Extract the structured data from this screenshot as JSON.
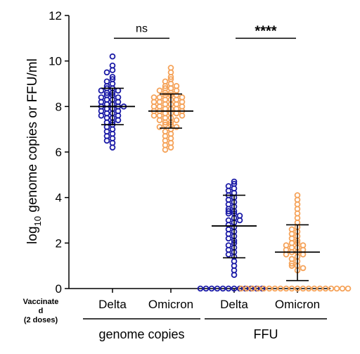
{
  "chart_data": {
    "type": "scatter",
    "ylabel_main": "log",
    "ylabel_sub": "10",
    "ylabel_rest": " genome copies or FFU/ml",
    "ylim": [
      0,
      12
    ],
    "yticks": [
      "0",
      "2",
      "4",
      "6",
      "8",
      "10",
      "12"
    ],
    "row_label_lines": [
      "Vaccinate",
      "d",
      "(2 doses)"
    ],
    "categories": [
      "Delta",
      "Omicron",
      "Delta",
      "Omicron"
    ],
    "groups": [
      {
        "label": "genome copies",
        "categories": [
          0,
          1
        ]
      },
      {
        "label": "FFU",
        "categories": [
          2,
          3
        ]
      }
    ],
    "colors": {
      "Delta": "#1a1aa6",
      "Omicron": "#f5a35a"
    },
    "series": [
      {
        "category": "Delta",
        "group": "genome copies",
        "mean": 8.0,
        "sd_low": 7.2,
        "sd_high": 8.8,
        "values": [
          10.2,
          9.8,
          9.6,
          9.5,
          9.3,
          9.2,
          9.1,
          9.0,
          8.9,
          8.8,
          8.8,
          8.7,
          8.7,
          8.6,
          8.6,
          8.5,
          8.5,
          8.4,
          8.4,
          8.3,
          8.3,
          8.2,
          8.2,
          8.1,
          8.1,
          8.0,
          8.0,
          8.0,
          7.9,
          7.9,
          7.8,
          7.8,
          7.7,
          7.7,
          7.6,
          7.6,
          7.5,
          7.5,
          7.4,
          7.3,
          7.3,
          7.2,
          7.1,
          7.0,
          6.9,
          6.8,
          6.7,
          6.6,
          6.5,
          6.4,
          6.2
        ]
      },
      {
        "category": "Omicron",
        "group": "genome copies",
        "mean": 7.8,
        "sd_low": 7.05,
        "sd_high": 8.55,
        "values": [
          9.7,
          9.5,
          9.3,
          9.2,
          9.1,
          9.0,
          8.9,
          8.9,
          8.8,
          8.8,
          8.7,
          8.7,
          8.6,
          8.6,
          8.5,
          8.5,
          8.5,
          8.4,
          8.4,
          8.4,
          8.3,
          8.3,
          8.3,
          8.2,
          8.2,
          8.2,
          8.1,
          8.1,
          8.1,
          8.0,
          8.0,
          8.0,
          7.9,
          7.9,
          7.9,
          7.8,
          7.8,
          7.8,
          7.7,
          7.7,
          7.7,
          7.6,
          7.6,
          7.6,
          7.5,
          7.5,
          7.4,
          7.4,
          7.3,
          7.3,
          7.2,
          7.2,
          7.1,
          7.1,
          7.0,
          6.9,
          6.8,
          6.7,
          6.6,
          6.5,
          6.4,
          6.3,
          6.2,
          6.1
        ]
      },
      {
        "category": "Delta",
        "group": "FFU",
        "mean": 2.75,
        "sd_low": 1.35,
        "sd_high": 4.1,
        "values": [
          4.7,
          4.6,
          4.5,
          4.4,
          4.3,
          4.2,
          4.1,
          4.0,
          3.9,
          3.8,
          3.7,
          3.6,
          3.5,
          3.4,
          3.4,
          3.3,
          3.3,
          3.2,
          3.1,
          3.0,
          3.0,
          2.9,
          2.8,
          2.7,
          2.6,
          2.5,
          2.4,
          2.3,
          2.2,
          2.1,
          2.0,
          1.9,
          1.8,
          1.7,
          1.6,
          1.5,
          1.4,
          1.2,
          1.0,
          0.8,
          0.6,
          0,
          0,
          0,
          0,
          0,
          0,
          0,
          0,
          0,
          0,
          0,
          0
        ]
      },
      {
        "category": "Omicron",
        "group": "FFU",
        "mean": 1.6,
        "sd_low": 0.35,
        "sd_high": 2.8,
        "values": [
          4.1,
          3.9,
          3.7,
          3.5,
          3.3,
          3.1,
          2.9,
          2.7,
          2.6,
          2.5,
          2.4,
          2.3,
          2.2,
          2.1,
          2.0,
          2.0,
          1.9,
          1.9,
          1.8,
          1.8,
          1.7,
          1.7,
          1.6,
          1.6,
          1.5,
          1.5,
          1.4,
          1.3,
          1.2,
          1.1,
          1.0,
          1.0,
          0.9,
          0.8,
          0,
          0,
          0,
          0,
          0,
          0,
          0,
          0,
          0,
          0,
          0,
          0,
          0,
          0,
          0,
          0,
          0,
          0,
          0,
          0
        ]
      }
    ],
    "significance": [
      {
        "label": "ns",
        "between": [
          0,
          1
        ],
        "y": 11.0,
        "bold": false
      },
      {
        "label": "****",
        "between": [
          2,
          3
        ],
        "y": 11.0,
        "bold": true
      }
    ],
    "grid": false,
    "legend": "none"
  }
}
